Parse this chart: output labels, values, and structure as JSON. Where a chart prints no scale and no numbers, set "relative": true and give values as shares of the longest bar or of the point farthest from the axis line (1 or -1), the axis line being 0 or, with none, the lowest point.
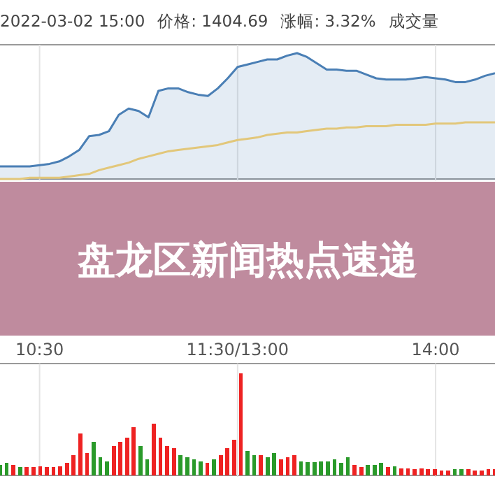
{
  "chart_data": [
    {
      "type": "line",
      "title": "盘龙区新闻热点速递",
      "annotations": [
        "2022-03-02 15:00",
        "价格: 1404.69",
        "涨幅: 3.32%",
        "成交量"
      ],
      "relative": true,
      "grid": "x",
      "categories": [
        null,
        null,
        null,
        null,
        "10:30",
        null,
        null,
        null,
        null,
        null,
        null,
        null,
        null,
        null,
        null,
        null,
        null,
        null,
        null,
        null,
        null,
        null,
        null,
        null,
        "11:30/13:00",
        null,
        null,
        null,
        null,
        null,
        null,
        null,
        null,
        null,
        null,
        null,
        null,
        null,
        null,
        null,
        null,
        null,
        null,
        null,
        "14:00",
        null,
        null,
        null,
        null,
        null,
        null
      ],
      "series": [
        {
          "type": "area",
          "color": "#4a7fb5",
          "values": [
            0.1,
            0.1,
            0.1,
            0.1,
            0.11,
            0.12,
            0.14,
            0.18,
            0.23,
            0.34,
            0.35,
            0.38,
            0.51,
            0.56,
            0.54,
            0.49,
            0.7,
            0.72,
            0.72,
            0.69,
            0.67,
            0.66,
            0.72,
            0.8,
            0.89,
            0.91,
            0.93,
            0.95,
            0.95,
            0.98,
            1,
            0.97,
            0.92,
            0.87,
            0.87,
            0.86,
            0.86,
            0.83,
            0.8,
            0.79,
            0.79,
            0.79,
            0.8,
            0.81,
            0.8,
            0.79,
            0.77,
            0.77,
            0.79,
            0.82,
            0.84
          ]
        },
        {
          "color": "#e2c77a",
          "values": [
            0,
            0,
            0,
            0.01,
            0.01,
            0.01,
            0.01,
            0.02,
            0.03,
            0.04,
            0.07,
            0.09,
            0.11,
            0.13,
            0.16,
            0.18,
            0.2,
            0.22,
            0.23,
            0.24,
            0.25,
            0.26,
            0.27,
            0.29,
            0.31,
            0.32,
            0.33,
            0.35,
            0.36,
            0.37,
            0.37,
            0.38,
            0.39,
            0.4,
            0.4,
            0.41,
            0.41,
            0.42,
            0.42,
            0.42,
            0.43,
            0.43,
            0.43,
            0.43,
            0.44,
            0.44,
            0.44,
            0.45,
            0.45,
            0.45,
            0.45
          ]
        }
      ]
    },
    {
      "type": "bar",
      "relative": true,
      "grid": "x",
      "categories": [
        null,
        null,
        null,
        null,
        null,
        null,
        null,
        null,
        null,
        null,
        null,
        null,
        null,
        null,
        null,
        null,
        null,
        null,
        null,
        null,
        null,
        null,
        null,
        null,
        null,
        null,
        null,
        null,
        null,
        null,
        null,
        null,
        null,
        null,
        null,
        null,
        null,
        null,
        null,
        null,
        null,
        null,
        null,
        null,
        null,
        null,
        null,
        null,
        null,
        null,
        null,
        null,
        null,
        null,
        null,
        null,
        null,
        null,
        null,
        null,
        null,
        null,
        null,
        null,
        null,
        null,
        null,
        null,
        null,
        null,
        null,
        null,
        null,
        null,
        null
      ],
      "values": [
        0.1,
        0.12,
        0.1,
        0.08,
        0.08,
        0.08,
        0.09,
        0.08,
        0.08,
        0.09,
        0.12,
        0.2,
        0.41,
        0.22,
        0.33,
        0.18,
        0.14,
        0.29,
        0.33,
        0.37,
        0.47,
        0.29,
        0.16,
        0.51,
        0.37,
        0.29,
        0.27,
        0.2,
        0.18,
        0.16,
        0.14,
        0.12,
        0.16,
        0.2,
        0.27,
        0.35,
        1,
        0.24,
        0.2,
        0.2,
        0.18,
        0.22,
        0.16,
        0.18,
        0.2,
        0.14,
        0.13,
        0.13,
        0.14,
        0.14,
        0.16,
        0.12,
        0.18,
        0.1,
        0.08,
        0.1,
        0.1,
        0.12,
        0.08,
        0.09,
        0.07,
        0.07,
        0.06,
        0.07,
        0.06,
        0.06,
        0.05,
        0.05,
        0.06,
        0.06,
        0.06,
        0.05,
        0.05,
        0.06,
        0.06
      ],
      "colors": [
        "#2a9a2a",
        "#2a9a2a",
        "#ee2222",
        "#2a9a2a",
        "#ee2222",
        "#ee2222",
        "#ee2222",
        "#ee2222",
        "#ee2222",
        "#ee2222",
        "#ee2222",
        "#ee2222",
        "#ee2222",
        "#ee2222",
        "#2a9a2a",
        "#2a9a2a",
        "#2a9a2a",
        "#ee2222",
        "#ee2222",
        "#ee2222",
        "#ee2222",
        "#2a9a2a",
        "#2a9a2a",
        "#ee2222",
        "#ee2222",
        "#ee2222",
        "#ee2222",
        "#2a9a2a",
        "#2a9a2a",
        "#2a9a2a",
        "#2a9a2a",
        "#ee2222",
        "#2a9a2a",
        "#ee2222",
        "#ee2222",
        "#ee2222",
        "#ee2222",
        "#2a9a2a",
        "#2a9a2a",
        "#ee2222",
        "#2a9a2a",
        "#2a9a2a",
        "#ee2222",
        "#ee2222",
        "#ee2222",
        "#2a9a2a",
        "#2a9a2a",
        "#2a9a2a",
        "#2a9a2a",
        "#2a9a2a",
        "#2a9a2a",
        "#2a9a2a",
        "#2a9a2a",
        "#ee2222",
        "#ee2222",
        "#2a9a2a",
        "#2a9a2a",
        "#2a9a2a",
        "#ee2222",
        "#2a9a2a",
        "#ee2222",
        "#ee2222",
        "#ee2222",
        "#ee2222",
        "#ee2222",
        "#ee2222",
        "#ee2222",
        "#ee2222",
        "#2a9a2a",
        "#2a9a2a",
        "#ee2222",
        "#ee2222",
        "#ee2222",
        "#ee2222",
        "#ee2222"
      ]
    }
  ]
}
